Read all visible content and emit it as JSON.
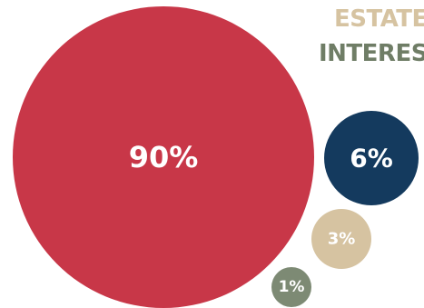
{
  "side_labels": [
    "ESTATE",
    "INTERES"
  ],
  "colors": {
    "red": "#c83748",
    "navy": "#143a5e",
    "tan": "#d6c3a1",
    "sage": "#7d8a74",
    "label_tan": "#d6c3a1",
    "label_sage": "#6f7d66"
  },
  "chart_data": {
    "type": "bubble",
    "title": "",
    "values": [
      90,
      6,
      3,
      1
    ],
    "labels": [
      "90%",
      "6%",
      "3%",
      "1%"
    ],
    "colors": [
      "#c83748",
      "#143a5e",
      "#d6c3a1",
      "#7d8a74"
    ]
  }
}
